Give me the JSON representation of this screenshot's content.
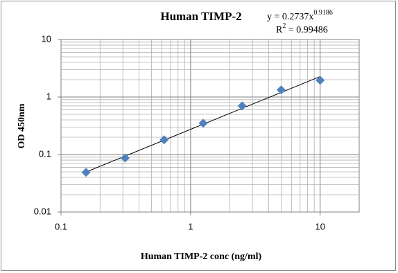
{
  "chart_data": {
    "type": "scatter",
    "title": "Human TIMP-2",
    "equation": {
      "base": "y = 0.2737x",
      "exponent": "0.9186"
    },
    "r_squared": {
      "base": "R",
      "superscript": "2",
      "value": " = 0.99486"
    },
    "x_label": "Human TIMP-2 conc (ng/ml)",
    "y_label": "OD 450nm",
    "x": [
      0.156,
      0.3125,
      0.625,
      1.25,
      2.5,
      5,
      10
    ],
    "values": [
      0.049,
      0.087,
      0.18,
      0.35,
      0.7,
      1.33,
      1.95
    ],
    "color": "#4f81bd",
    "trendline_color": "#000000",
    "xlim": [
      0.1,
      20
    ],
    "xticks": [
      0.1,
      1,
      10
    ],
    "ylim": [
      0.01,
      10
    ],
    "yticks": [
      0.01,
      0.1,
      1,
      10
    ],
    "log_x": true,
    "log_y": true,
    "grid": true,
    "minor_grid": true
  }
}
